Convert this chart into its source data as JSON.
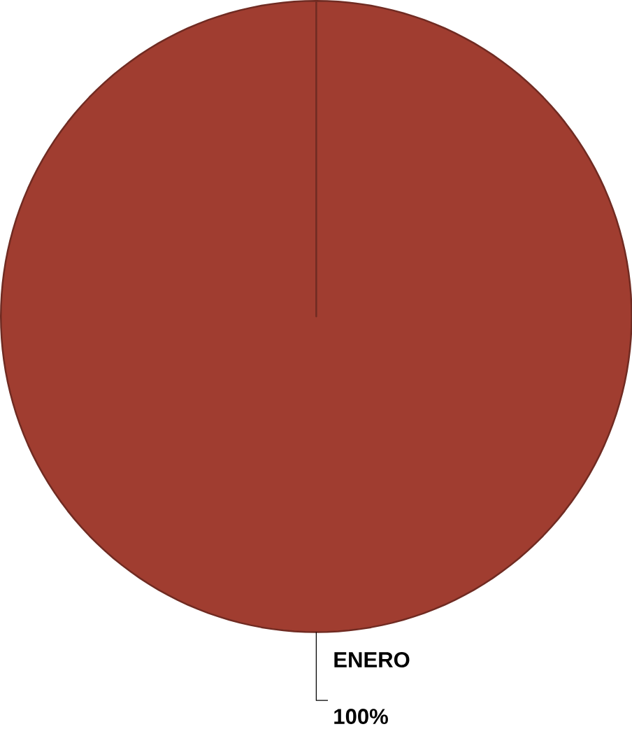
{
  "chart_data": {
    "type": "pie",
    "categories": [
      "ENERO"
    ],
    "values": [
      100
    ],
    "value_labels": [
      "100%"
    ],
    "colors": [
      "#a03d30"
    ]
  }
}
